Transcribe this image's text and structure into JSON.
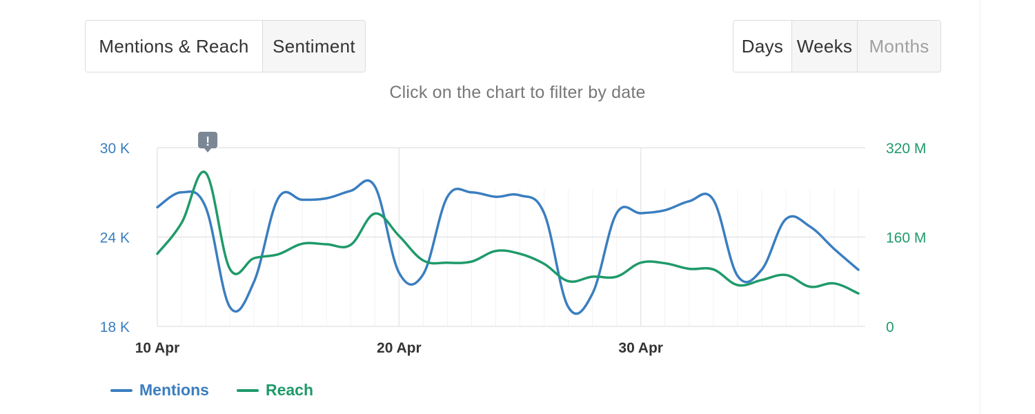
{
  "header": {
    "view_tabs": [
      {
        "label": "Mentions & Reach",
        "active": true
      },
      {
        "label": "Sentiment",
        "active": false
      }
    ],
    "period_tabs": [
      {
        "label": "Days",
        "active": true
      },
      {
        "label": "Weeks",
        "active": false
      },
      {
        "label": "Months",
        "active": false,
        "disabled": true
      }
    ],
    "hint": "Click on the chart to filter by date"
  },
  "colors": {
    "mentions": "#3a7ebf",
    "reach": "#1f9a6a",
    "grid": "#e6e6e6",
    "alert_marker": "#7b8794"
  },
  "alert_icon": "exclamation-alert-icon",
  "chart_data": {
    "type": "line",
    "x": [
      "10 Apr",
      "11 Apr",
      "12 Apr",
      "13 Apr",
      "14 Apr",
      "15 Apr",
      "16 Apr",
      "17 Apr",
      "18 Apr",
      "19 Apr",
      "20 Apr",
      "21 Apr",
      "22 Apr",
      "23 Apr",
      "24 Apr",
      "25 Apr",
      "26 Apr",
      "27 Apr",
      "28 Apr",
      "29 Apr",
      "30 Apr",
      "1 May",
      "2 May",
      "3 May",
      "4 May",
      "5 May",
      "6 May",
      "7 May",
      "8 May",
      "9 May"
    ],
    "x_tick_labels": [
      "10 Apr",
      "20 Apr",
      "30 Apr"
    ],
    "x_tick_index": [
      0,
      10,
      20
    ],
    "series": [
      {
        "name": "Mentions",
        "axis": "left",
        "values": [
          26000,
          27000,
          26000,
          19300,
          21000,
          26600,
          26500,
          26600,
          27100,
          27400,
          21600,
          21500,
          26700,
          27000,
          26700,
          26800,
          25600,
          19300,
          20200,
          25600,
          25600,
          25800,
          26400,
          26500,
          21400,
          21800,
          25200,
          24700,
          23200,
          21800
        ]
      },
      {
        "name": "Reach",
        "axis": "right",
        "values": [
          130,
          185,
          275,
          103,
          122,
          129,
          148,
          147,
          146,
          202,
          162,
          118,
          114,
          116,
          135,
          130,
          112,
          81,
          89,
          89,
          114,
          113,
          103,
          102,
          74,
          83,
          92,
          71,
          77,
          59
        ]
      }
    ],
    "y_left": {
      "min": 18000,
      "max": 30000,
      "ticks": [
        18000,
        24000,
        30000
      ],
      "tick_labels": [
        "18 K",
        "24 K",
        "30 K"
      ]
    },
    "y_right": {
      "min": 0,
      "max": 320,
      "ticks": [
        0,
        160,
        320
      ],
      "tick_labels": [
        "0",
        "160 M",
        "320 M"
      ]
    },
    "annotation": {
      "x_index": 2,
      "label": "!"
    },
    "legend": [
      {
        "name": "Mentions",
        "color": "#3a7ebf"
      },
      {
        "name": "Reach",
        "color": "#1f9a6a"
      }
    ],
    "legend_position": "bottom-left",
    "grid": true
  }
}
